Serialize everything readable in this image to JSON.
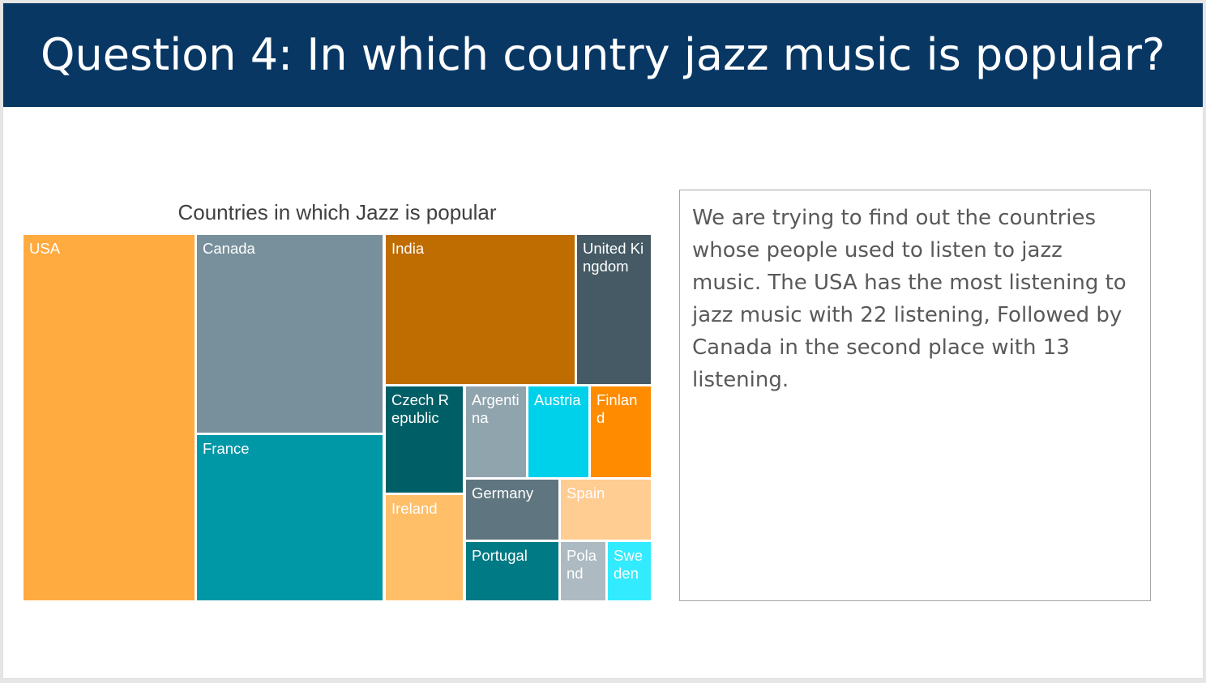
{
  "slide": {
    "title": "Question 4: In which country jazz music is popular?",
    "description": "We are trying to find out the countries whose people used to listen to jazz music. The USA has the most listening to jazz music with 22 listening, Followed by Canada in the second place with 13 listening."
  },
  "chart_data": {
    "type": "treemap",
    "title": "Countries in which Jazz is popular",
    "series": [
      {
        "name": "USA",
        "value": 22,
        "color": "#FFAB40"
      },
      {
        "name": "Canada",
        "value": 13,
        "color": "#78909C"
      },
      {
        "name": "France",
        "value": 11,
        "color": "#0097A7"
      },
      {
        "name": "India",
        "value": 9,
        "color": "#BF6C00"
      },
      {
        "name": "United Kingdom",
        "value": 4,
        "color": "#455A64"
      },
      {
        "name": "Czech Republic",
        "value": 3,
        "color": "#005F66"
      },
      {
        "name": "Ireland",
        "value": 3,
        "color": "#FFBF69"
      },
      {
        "name": "Argentina",
        "value": 2,
        "color": "#90A4AE"
      },
      {
        "name": "Austria",
        "value": 2,
        "color": "#00D1EB"
      },
      {
        "name": "Finland",
        "value": 2,
        "color": "#FF8C00"
      },
      {
        "name": "Germany",
        "value": 2,
        "color": "#5F7580"
      },
      {
        "name": "Spain",
        "value": 2,
        "color": "#FFCC91"
      },
      {
        "name": "Portugal",
        "value": 2,
        "color": "#007A85"
      },
      {
        "name": "Poland",
        "value": 1,
        "color": "#ADBAC1"
      },
      {
        "name": "Sweden",
        "value": 1,
        "color": "#33EBFF"
      }
    ]
  }
}
